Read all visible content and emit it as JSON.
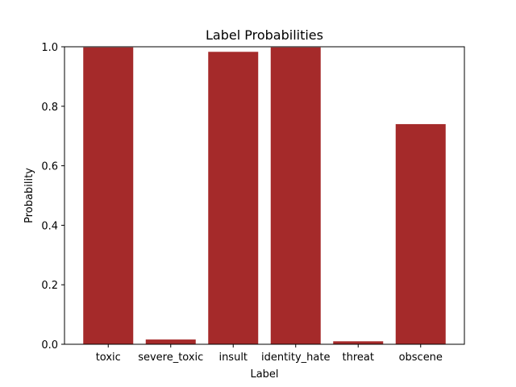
{
  "chart_data": {
    "type": "bar",
    "title": "Label Probabilities",
    "xlabel": "Label",
    "ylabel": "Probability",
    "categories": [
      "toxic",
      "severe_toxic",
      "insult",
      "identity_hate",
      "threat",
      "obscene"
    ],
    "values": [
      0.998,
      0.016,
      0.983,
      0.998,
      0.01,
      0.74
    ],
    "ylim": [
      0,
      1.0
    ],
    "yticks": [
      0.0,
      0.2,
      0.4,
      0.6,
      0.8,
      1.0
    ],
    "ytick_labels": [
      "0.0",
      "0.2",
      "0.4",
      "0.6",
      "0.8",
      "1.0"
    ],
    "bar_color": "#a52a2a",
    "grid": false,
    "legend": "none"
  }
}
